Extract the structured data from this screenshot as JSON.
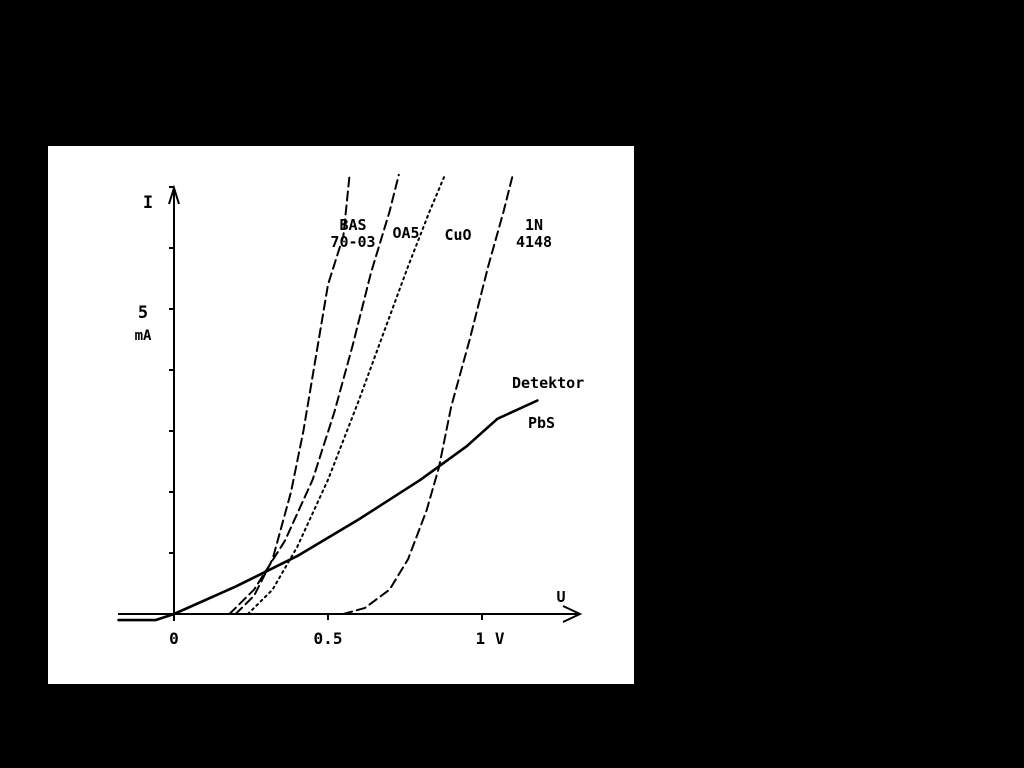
{
  "chart_data": {
    "type": "line",
    "title": "",
    "xlabel": "U",
    "ylabel": "I",
    "y_unit_value": "5",
    "y_unit_label": "mA",
    "xlim": [
      -0.18,
      1.33
    ],
    "ylim": [
      -0.2,
      8.2
    ],
    "x_ticks": [
      {
        "value": 0,
        "label": "0"
      },
      {
        "value": 0.5,
        "label": "0.5"
      },
      {
        "value": 1,
        "label": "1 V"
      }
    ],
    "y_ticks": [
      1,
      2,
      3,
      4,
      5,
      6,
      7
    ],
    "grid": false,
    "series": [
      {
        "name": "BAS 70-03",
        "label_lines": [
          "BAS",
          "70-03"
        ],
        "style": "dashed",
        "points": [
          [
            0.2,
            0
          ],
          [
            0.26,
            0.3
          ],
          [
            0.32,
            0.9
          ],
          [
            0.38,
            2.0
          ],
          [
            0.42,
            3.0
          ],
          [
            0.46,
            4.2
          ],
          [
            0.5,
            5.4
          ],
          [
            0.55,
            6.2
          ],
          [
            0.57,
            7.2
          ]
        ]
      },
      {
        "name": "OA5",
        "label_lines": [
          "OA5"
        ],
        "style": "dashed",
        "points": [
          [
            0.18,
            0
          ],
          [
            0.26,
            0.4
          ],
          [
            0.36,
            1.2
          ],
          [
            0.45,
            2.2
          ],
          [
            0.52,
            3.3
          ],
          [
            0.58,
            4.4
          ],
          [
            0.64,
            5.6
          ],
          [
            0.7,
            6.6
          ],
          [
            0.73,
            7.2
          ]
        ]
      },
      {
        "name": "CuO",
        "label_lines": [
          "CuO"
        ],
        "style": "dotted",
        "points": [
          [
            0.24,
            0
          ],
          [
            0.32,
            0.4
          ],
          [
            0.4,
            1.1
          ],
          [
            0.5,
            2.2
          ],
          [
            0.6,
            3.5
          ],
          [
            0.68,
            4.6
          ],
          [
            0.76,
            5.7
          ],
          [
            0.83,
            6.6
          ],
          [
            0.88,
            7.2
          ]
        ]
      },
      {
        "name": "1N 4148",
        "label_lines": [
          "1N",
          "4148"
        ],
        "style": "dashed",
        "points": [
          [
            0.55,
            0
          ],
          [
            0.62,
            0.1
          ],
          [
            0.7,
            0.4
          ],
          [
            0.76,
            0.9
          ],
          [
            0.82,
            1.7
          ],
          [
            0.86,
            2.4
          ],
          [
            0.9,
            3.4
          ],
          [
            0.96,
            4.5
          ],
          [
            1.02,
            5.7
          ],
          [
            1.07,
            6.6
          ],
          [
            1.1,
            7.2
          ]
        ]
      },
      {
        "name": "Detektor PbS",
        "label_lines": [
          "Detektor",
          "PbS"
        ],
        "style": "solid",
        "points": [
          [
            -0.18,
            -0.1
          ],
          [
            -0.06,
            -0.1
          ],
          [
            0.0,
            0.0
          ],
          [
            0.2,
            0.45
          ],
          [
            0.4,
            0.95
          ],
          [
            0.6,
            1.55
          ],
          [
            0.8,
            2.2
          ],
          [
            0.95,
            2.75
          ],
          [
            1.05,
            3.2
          ],
          [
            1.18,
            3.5
          ]
        ]
      }
    ]
  }
}
